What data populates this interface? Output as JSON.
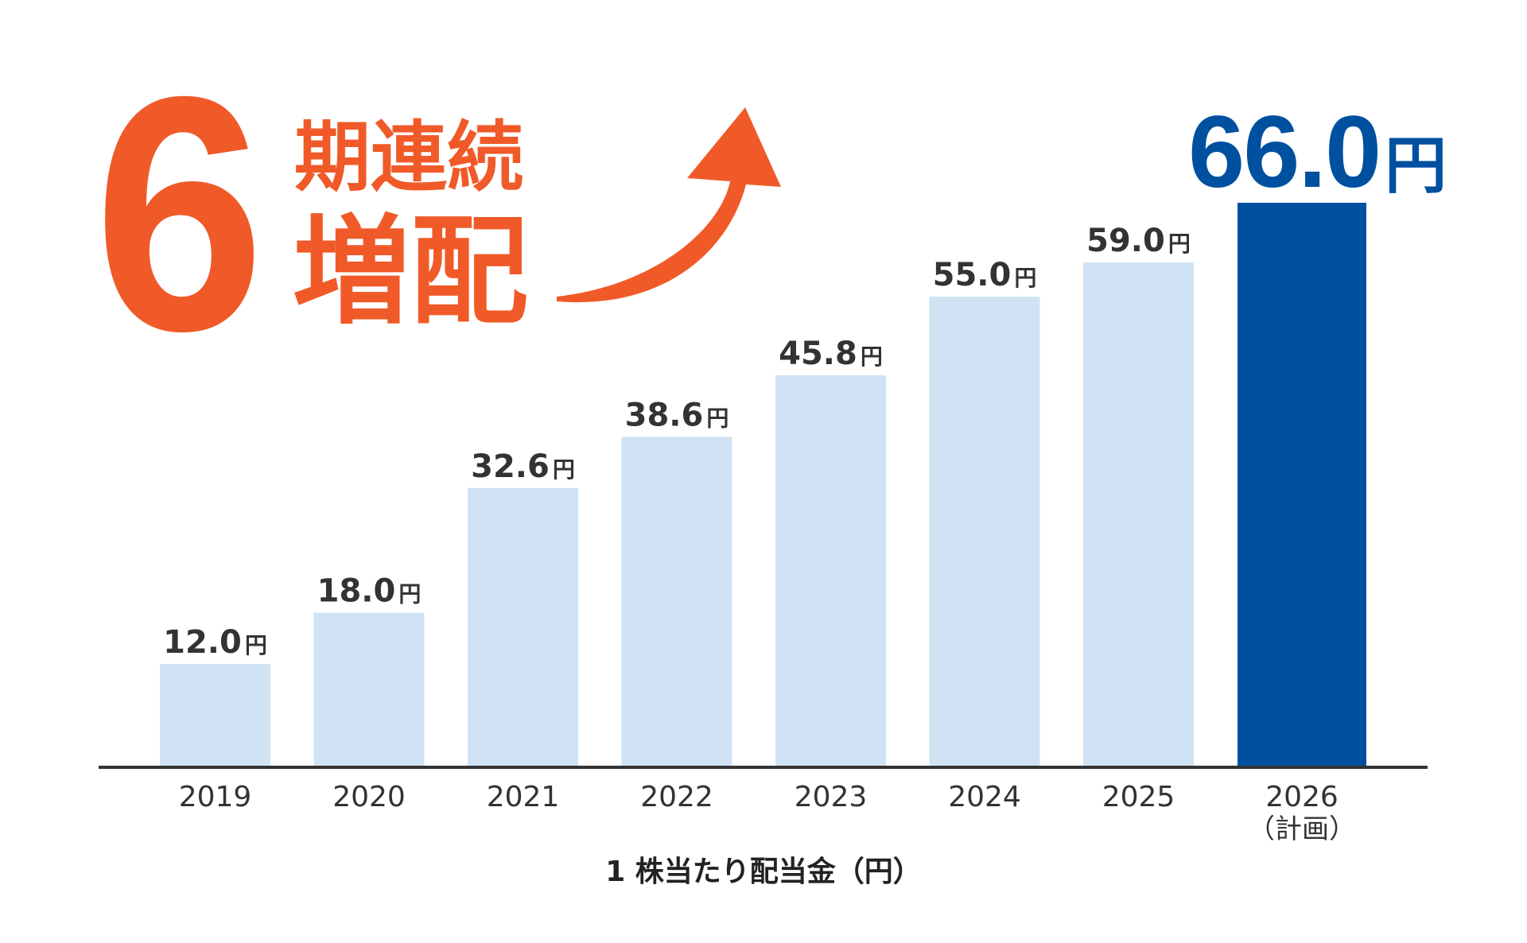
{
  "headline": {
    "count": "6",
    "line1": "期連続",
    "line2": "増配",
    "target_value": "66.0",
    "target_unit": "円"
  },
  "colors": {
    "accent_orange": "#f05a28",
    "bar_actual": "#cfe3f4",
    "bar_plan": "#0050a0",
    "text": "#333333",
    "axis": "#333333"
  },
  "chart_data": {
    "type": "bar",
    "title": "",
    "xlabel": "1 株当たり配当金（円）",
    "ylabel": "",
    "categories": [
      "2019",
      "2020",
      "2021",
      "2022",
      "2023",
      "2024",
      "2025",
      "2026"
    ],
    "category_sublabels": [
      "",
      "",
      "",
      "",
      "",
      "",
      "",
      "（計画）"
    ],
    "values": [
      12.0,
      18.0,
      32.6,
      38.6,
      45.8,
      55.0,
      59.0,
      66.0
    ],
    "value_labels": [
      "12.0",
      "18.0",
      "32.6",
      "38.6",
      "45.8",
      "55.0",
      "59.0",
      "66.0"
    ],
    "value_unit": "円",
    "highlight_index": 7,
    "ylim": [
      0,
      66
    ],
    "grid": false,
    "legend": "none"
  }
}
